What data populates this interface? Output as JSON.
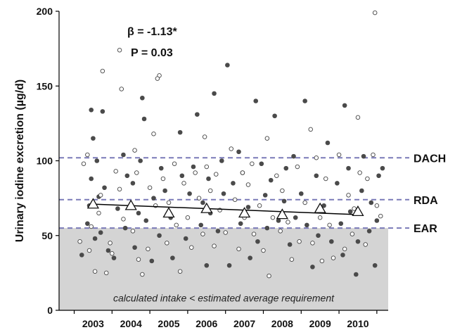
{
  "chart_data": {
    "type": "scatter",
    "title": "",
    "ylabel": "Urinary iodine excretion (µg/d)",
    "xlabel": "",
    "ylim": [
      0,
      200
    ],
    "xlim": [
      2002.1,
      2010.8
    ],
    "y_ticks": [
      "0",
      "50",
      "100",
      "150",
      "200"
    ],
    "x_ticks": [
      "2003",
      "2004",
      "2005",
      "2006",
      "2007",
      "2008",
      "2009",
      "2010"
    ],
    "grid": false,
    "legend": "none",
    "colors": {
      "filled": "#4a4a4a",
      "open_stroke": "#444444",
      "reference": "#7a7ab8",
      "band": "#d4d4d4",
      "trend": "#000000"
    },
    "reference_lines": [
      {
        "label": "DACH",
        "value": 102
      },
      {
        "label": "RDA",
        "value": 74
      },
      {
        "label": "EAR",
        "value": 55
      }
    ],
    "shaded_region": {
      "from": 0,
      "to": 55,
      "label": "calculated intake < estimated average requirement"
    },
    "annotation": {
      "line1": "β = -1.13*",
      "line2": "P = 0.03"
    },
    "trend_line": {
      "start": [
        2003,
        71
      ],
      "end": [
        2010,
        64
      ]
    },
    "yearly_means": {
      "x": [
        2003,
        2004,
        2005,
        2006,
        2007,
        2008,
        2009,
        2010
      ],
      "y": [
        71,
        70,
        65,
        68,
        65,
        64,
        68,
        66
      ]
    },
    "series": [
      {
        "marker": "filled-circle",
        "points": [
          [
            2002.7,
            37
          ],
          [
            2002.85,
            58
          ],
          [
            2002.9,
            70
          ],
          [
            2002.95,
            88
          ],
          [
            2003.0,
            115
          ],
          [
            2002.95,
            134
          ],
          [
            2003.05,
            48
          ],
          [
            2003.1,
            100
          ],
          [
            2003.15,
            76
          ],
          [
            2003.2,
            52
          ],
          [
            2003.25,
            133
          ],
          [
            2003.3,
            82
          ],
          [
            2003.4,
            40
          ],
          [
            2003.55,
            35
          ],
          [
            2003.65,
            68
          ],
          [
            2003.8,
            104
          ],
          [
            2003.85,
            55
          ],
          [
            2003.9,
            90
          ],
          [
            2004.05,
            85
          ],
          [
            2004.1,
            42
          ],
          [
            2004.2,
            65
          ],
          [
            2004.25,
            100
          ],
          [
            2004.3,
            142
          ],
          [
            2004.35,
            128
          ],
          [
            2004.4,
            60
          ],
          [
            2004.55,
            33
          ],
          [
            2004.6,
            75
          ],
          [
            2004.75,
            50
          ],
          [
            2004.8,
            95
          ],
          [
            2004.9,
            80
          ],
          [
            2005.05,
            62
          ],
          [
            2005.1,
            35
          ],
          [
            2005.3,
            119
          ],
          [
            2005.35,
            90
          ],
          [
            2005.45,
            48
          ],
          [
            2005.55,
            78
          ],
          [
            2005.65,
            96
          ],
          [
            2005.75,
            131
          ],
          [
            2005.85,
            57
          ],
          [
            2005.9,
            72
          ],
          [
            2006.0,
            30
          ],
          [
            2006.05,
            88
          ],
          [
            2006.1,
            65
          ],
          [
            2006.2,
            145
          ],
          [
            2006.3,
            53
          ],
          [
            2006.4,
            100
          ],
          [
            2006.45,
            78
          ],
          [
            2006.55,
            164
          ],
          [
            2006.6,
            30
          ],
          [
            2006.7,
            85
          ],
          [
            2006.85,
            106
          ],
          [
            2006.9,
            58
          ],
          [
            2006.95,
            92
          ],
          [
            2007.1,
            69
          ],
          [
            2007.15,
            35
          ],
          [
            2007.3,
            140
          ],
          [
            2007.35,
            46
          ],
          [
            2007.45,
            98
          ],
          [
            2007.55,
            77
          ],
          [
            2007.6,
            55
          ],
          [
            2007.7,
            87
          ],
          [
            2007.8,
            130
          ],
          [
            2007.9,
            60
          ],
          [
            2008.05,
            73
          ],
          [
            2008.1,
            95
          ],
          [
            2008.2,
            44
          ],
          [
            2008.3,
            103
          ],
          [
            2008.35,
            62
          ],
          [
            2008.5,
            78
          ],
          [
            2008.6,
            140
          ],
          [
            2008.65,
            57
          ],
          [
            2008.8,
            29
          ],
          [
            2008.9,
            90
          ],
          [
            2008.95,
            50
          ],
          [
            2009.1,
            70
          ],
          [
            2009.2,
            112
          ],
          [
            2009.3,
            46
          ],
          [
            2009.45,
            85
          ],
          [
            2009.55,
            58
          ],
          [
            2009.6,
            37
          ],
          [
            2009.65,
            137
          ],
          [
            2009.75,
            95
          ],
          [
            2009.8,
            66
          ],
          [
            2009.95,
            24
          ],
          [
            2010.0,
            46
          ],
          [
            2010.1,
            80
          ],
          [
            2010.15,
            103
          ],
          [
            2010.3,
            53
          ],
          [
            2010.35,
            72
          ],
          [
            2010.45,
            30
          ],
          [
            2010.55,
            90
          ],
          [
            2010.65,
            95
          ],
          [
            2010.5,
            60
          ]
        ]
      },
      {
        "marker": "open-circle",
        "points": [
          [
            2002.65,
            46
          ],
          [
            2002.75,
            98
          ],
          [
            2002.85,
            104
          ],
          [
            2002.9,
            40
          ],
          [
            2002.95,
            56
          ],
          [
            2003.05,
            26
          ],
          [
            2003.15,
            65
          ],
          [
            2003.2,
            77
          ],
          [
            2003.25,
            160
          ],
          [
            2003.35,
            25
          ],
          [
            2003.45,
            45
          ],
          [
            2003.5,
            38
          ],
          [
            2003.6,
            93
          ],
          [
            2003.7,
            81
          ],
          [
            2003.75,
            148
          ],
          [
            2003.7,
            174
          ],
          [
            2003.8,
            61
          ],
          [
            2004.05,
            53
          ],
          [
            2004.1,
            107
          ],
          [
            2004.15,
            92
          ],
          [
            2004.2,
            34
          ],
          [
            2004.3,
            24
          ],
          [
            2004.45,
            41
          ],
          [
            2004.5,
            82
          ],
          [
            2004.6,
            118
          ],
          [
            2004.65,
            70
          ],
          [
            2004.75,
            157
          ],
          [
            2004.7,
            155
          ],
          [
            2004.85,
            88
          ],
          [
            2004.95,
            45
          ],
          [
            2005.0,
            72
          ],
          [
            2005.15,
            98
          ],
          [
            2005.2,
            57
          ],
          [
            2005.3,
            26
          ],
          [
            2005.4,
            85
          ],
          [
            2005.5,
            62
          ],
          [
            2005.6,
            42
          ],
          [
            2005.7,
            92
          ],
          [
            2005.8,
            75
          ],
          [
            2005.9,
            51
          ],
          [
            2005.95,
            116
          ],
          [
            2006.0,
            96
          ],
          [
            2006.1,
            80
          ],
          [
            2006.2,
            43
          ],
          [
            2006.25,
            91
          ],
          [
            2006.35,
            67
          ],
          [
            2006.5,
            52
          ],
          [
            2006.65,
            108
          ],
          [
            2006.75,
            74
          ],
          [
            2006.85,
            41
          ],
          [
            2006.95,
            92
          ],
          [
            2007.0,
            62
          ],
          [
            2007.1,
            84
          ],
          [
            2007.2,
            98
          ],
          [
            2007.25,
            51
          ],
          [
            2007.4,
            70
          ],
          [
            2007.5,
            40
          ],
          [
            2007.6,
            115
          ],
          [
            2007.65,
            23
          ],
          [
            2007.75,
            62
          ],
          [
            2007.85,
            90
          ],
          [
            2007.95,
            53
          ],
          [
            2008.0,
            80
          ],
          [
            2008.15,
            59
          ],
          [
            2008.25,
            34
          ],
          [
            2008.4,
            96
          ],
          [
            2008.45,
            46
          ],
          [
            2008.6,
            72
          ],
          [
            2008.75,
            121
          ],
          [
            2008.8,
            45
          ],
          [
            2008.9,
            102
          ],
          [
            2009.0,
            62
          ],
          [
            2009.05,
            33
          ],
          [
            2009.15,
            88
          ],
          [
            2009.25,
            57
          ],
          [
            2009.35,
            35
          ],
          [
            2009.5,
            104
          ],
          [
            2009.65,
            41
          ],
          [
            2009.75,
            77
          ],
          [
            2009.85,
            51
          ],
          [
            2009.9,
            68
          ],
          [
            2010.0,
            129
          ],
          [
            2010.05,
            92
          ],
          [
            2010.2,
            44
          ],
          [
            2010.25,
            88
          ],
          [
            2010.4,
            104
          ],
          [
            2010.5,
            70
          ],
          [
            2010.6,
            63
          ],
          [
            2010.45,
            199
          ]
        ]
      }
    ]
  }
}
